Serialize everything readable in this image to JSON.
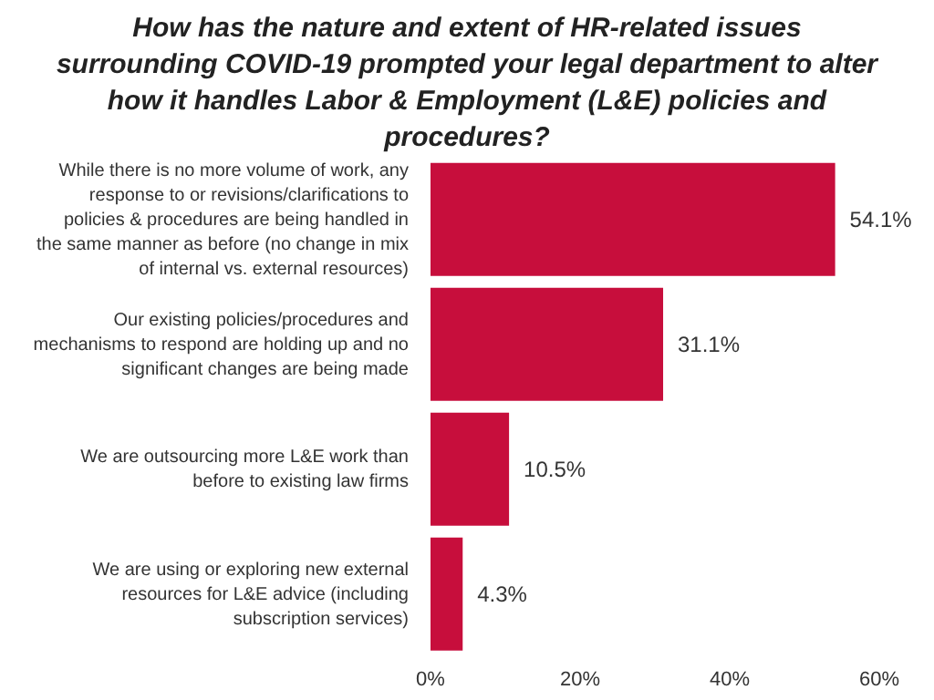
{
  "chart_data": {
    "type": "bar",
    "orientation": "horizontal",
    "title": "How has the nature and extent of HR-related issues surrounding COVID-19 prompted your legal department to alter how it handles Labor & Employment (L&E) policies and procedures?",
    "categories": [
      "While there is no more volume of work, any response to or revisions/clarifications to policies & procedures are being handled in the same manner as before (no change in mix of internal vs. external resources)",
      "Our existing policies/procedures and mechanisms to respond are holding up and no significant changes are being made",
      "We are outsourcing more L&E work than before to existing law firms",
      "We are using or exploring new external resources for L&E advice (including subscription services)"
    ],
    "values": [
      54.1,
      31.1,
      10.5,
      4.3
    ],
    "value_labels": [
      "54.1%",
      "31.1%",
      "10.5%",
      "4.3%"
    ],
    "color": "#c70e3c",
    "xlim": [
      0,
      60
    ],
    "xticks": [
      {
        "value": 0,
        "label": "0%"
      },
      {
        "value": 20,
        "label": "20%"
      },
      {
        "value": 40,
        "label": "40%"
      },
      {
        "value": 60,
        "label": "60%"
      }
    ]
  }
}
